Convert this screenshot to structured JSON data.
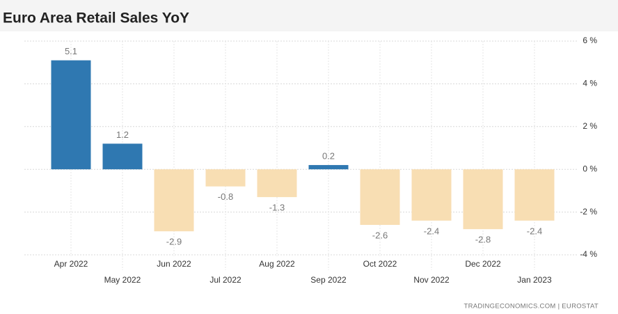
{
  "chart_data": {
    "type": "bar",
    "title": "Euro Area Retail Sales YoY",
    "categories": [
      "Apr 2022",
      "May 2022",
      "Jun 2022",
      "Jul 2022",
      "Aug 2022",
      "Sep 2022",
      "Oct 2022",
      "Nov 2022",
      "Dec 2022",
      "Jan 2023"
    ],
    "values": [
      5.1,
      1.2,
      -2.9,
      -0.8,
      -1.3,
      0.2,
      -2.6,
      -2.4,
      -2.8,
      -2.4
    ],
    "positive_color": "#2f78b1",
    "negative_color": "#f8deb3",
    "ylim": [
      -4,
      6
    ],
    "yticks": [
      {
        "value": -4,
        "label": "-4 %"
      },
      {
        "value": -2,
        "label": "-2 %"
      },
      {
        "value": 0,
        "label": "0 %"
      },
      {
        "value": 2,
        "label": "2 %"
      },
      {
        "value": 4,
        "label": "4 %"
      },
      {
        "value": 6,
        "label": "6 %"
      }
    ],
    "grid": true,
    "source": "TRADINGECONOMICS.COM  |  EUROSTAT"
  }
}
